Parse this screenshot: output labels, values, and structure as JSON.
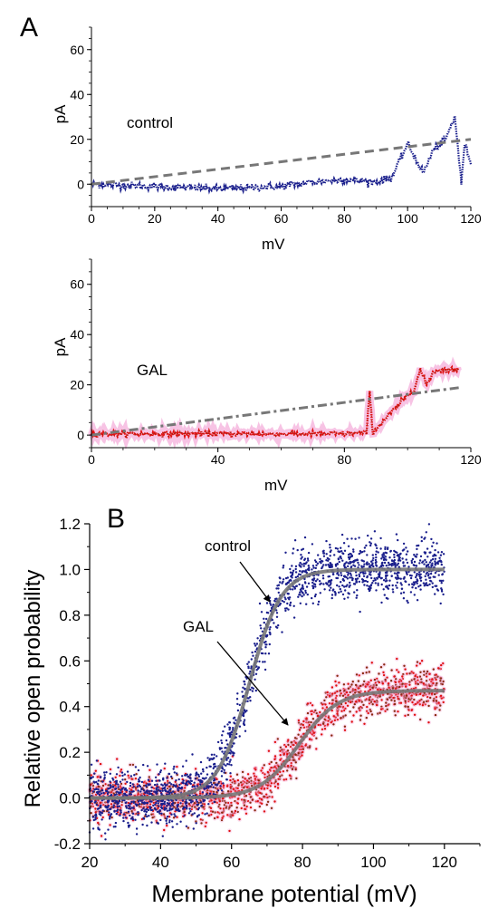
{
  "colors": {
    "control": "#1a1f8c",
    "gal": "#e01010",
    "gal_dark": "#8a2a10",
    "gal_halo": "#f4a9d8",
    "fit": "#777777",
    "axis": "#000000"
  },
  "panel_labels": {
    "a": "A",
    "b": "B"
  },
  "chart_data": [
    {
      "id": "A-control",
      "type": "line",
      "xlabel": "mV",
      "ylabel": "pA",
      "xlim": [
        0,
        120
      ],
      "ylim": [
        -10,
        70
      ],
      "xticks": [
        "0",
        "20",
        "40",
        "60",
        "80",
        "100",
        "120"
      ],
      "yticks": [
        "0",
        "20",
        "40",
        "60"
      ],
      "annotation": "control",
      "series": [
        {
          "style": "dotted-trace",
          "color": "control",
          "x": [
            0,
            20,
            40,
            60,
            70,
            80,
            90,
            95,
            100,
            105,
            108,
            112,
            115,
            117,
            118,
            120
          ],
          "y": [
            0,
            -1,
            -2,
            -1,
            1,
            2,
            1,
            3,
            18,
            5,
            15,
            20,
            30,
            0,
            18,
            10
          ]
        },
        {
          "style": "dashed-line",
          "color": "fit",
          "x": [
            0,
            120
          ],
          "y": [
            0,
            20
          ]
        }
      ]
    },
    {
      "id": "A-gal",
      "type": "line",
      "xlabel": "mV",
      "ylabel": "pA",
      "xlim": [
        0,
        120
      ],
      "ylim": [
        -5,
        70
      ],
      "xticks": [
        "0",
        "40",
        "80",
        "120"
      ],
      "yticks": [
        "0",
        "20",
        "40",
        "60"
      ],
      "annotation": "GAL",
      "series": [
        {
          "style": "dotted-trace",
          "color": "gal",
          "x": [
            0,
            20,
            40,
            60,
            80,
            87,
            88,
            89,
            100,
            102,
            104,
            106,
            108,
            110,
            112,
            116
          ],
          "y": [
            0.5,
            0.5,
            0.5,
            0.5,
            0.5,
            1,
            17,
            1,
            16,
            18,
            26,
            20,
            25,
            26,
            26,
            26
          ]
        },
        {
          "style": "dash-dot-line",
          "color": "fit",
          "x": [
            0,
            117
          ],
          "y": [
            0,
            19
          ]
        }
      ]
    },
    {
      "id": "B",
      "type": "scatter",
      "xlabel": "Membrane potential (mV)",
      "ylabel": "Relative open probability",
      "xlim": [
        20,
        130
      ],
      "ylim": [
        -0.2,
        1.2
      ],
      "xticks": [
        "20",
        "40",
        "60",
        "80",
        "100",
        "120"
      ],
      "yticks": [
        "-0.2",
        "0.0",
        "0.2",
        "0.4",
        "0.6",
        "0.8",
        "1.0",
        "1.2"
      ],
      "annotations": [
        "control",
        "GAL"
      ],
      "series": [
        {
          "name": "control",
          "color": "control",
          "v_half": 65,
          "slope": 4.5,
          "max": 1.0,
          "noise": 0.06
        },
        {
          "name": "GAL",
          "color": "gal",
          "v_half": 79,
          "slope": 5.5,
          "max": 0.47,
          "noise": 0.05
        }
      ]
    }
  ]
}
